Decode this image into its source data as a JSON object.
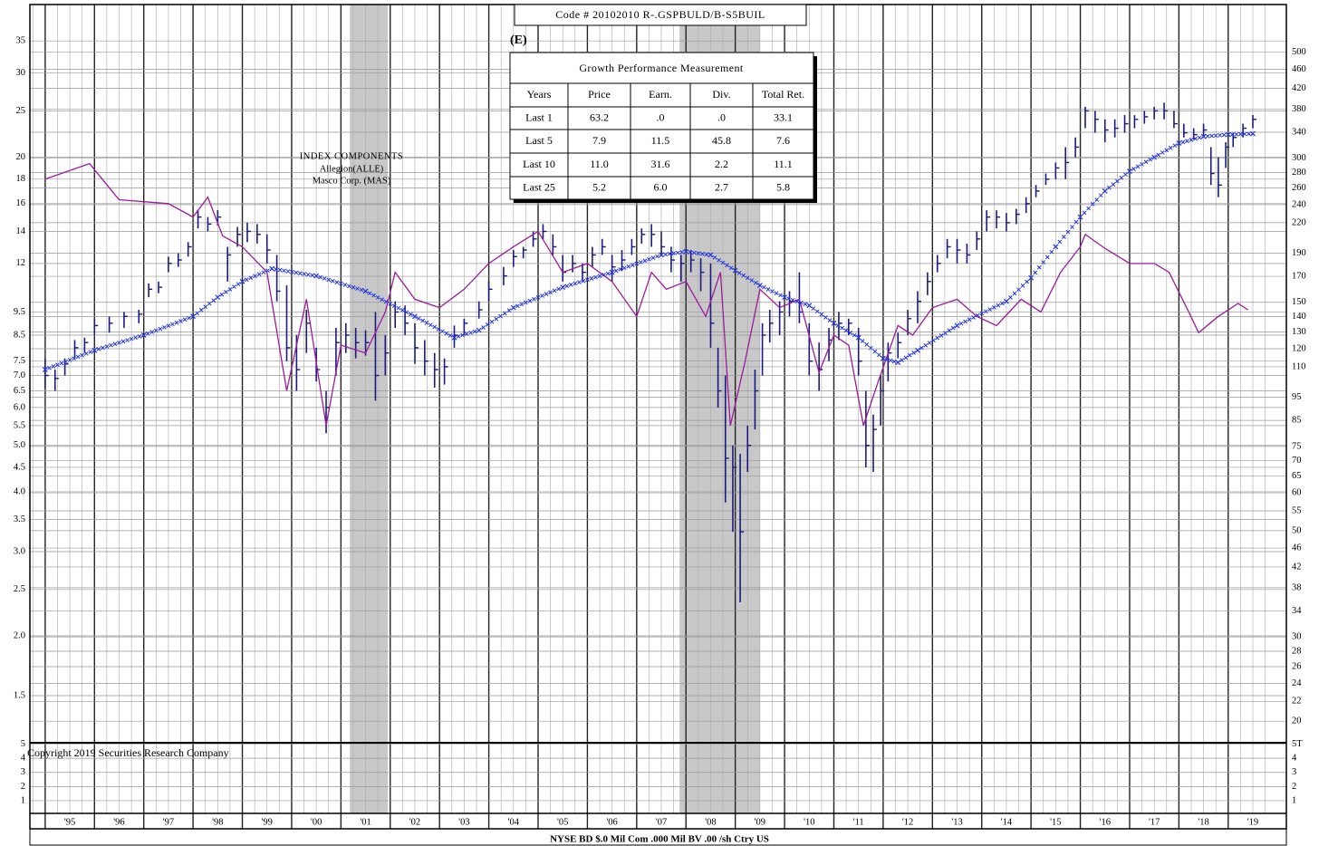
{
  "chart_data": {
    "type": "ohlc",
    "log_scale": true,
    "grid": true,
    "code_label": "Code # 20102010   R-.GSPBULD/B-S5BUIL",
    "estimate_flag": "(E)",
    "annotation": [
      "INDEX COMPONENTS",
      "Allegion(ALLE)",
      "Masco Corp. (MAS)"
    ],
    "copyright": "Copyright 2019 Securities Research Company",
    "footer": "NYSE BD  $.0 Mil Com .000 Mil BV .00 /sh  Ctry US",
    "xlim": [
      1994.69,
      2020.18
    ],
    "xticks": [
      {
        "value": 1995,
        "label": "'95"
      },
      {
        "value": 1996,
        "label": "'96"
      },
      {
        "value": 1997,
        "label": "'97"
      },
      {
        "value": 1998,
        "label": "'98"
      },
      {
        "value": 1999,
        "label": "'99"
      },
      {
        "value": 2000,
        "label": "'00"
      },
      {
        "value": 2001,
        "label": "'01"
      },
      {
        "value": 2002,
        "label": "'02"
      },
      {
        "value": 2003,
        "label": "'03"
      },
      {
        "value": 2004,
        "label": "'04"
      },
      {
        "value": 2005,
        "label": "'05"
      },
      {
        "value": 2006,
        "label": "'06"
      },
      {
        "value": 2007,
        "label": "'07"
      },
      {
        "value": 2008,
        "label": "'08"
      },
      {
        "value": 2009,
        "label": "'09"
      },
      {
        "value": 2010,
        "label": "'10"
      },
      {
        "value": 2011,
        "label": "'11"
      },
      {
        "value": 2012,
        "label": "'12"
      },
      {
        "value": 2013,
        "label": "'13"
      },
      {
        "value": 2014,
        "label": "'14"
      },
      {
        "value": 2015,
        "label": "'15"
      },
      {
        "value": 2016,
        "label": "'16"
      },
      {
        "value": 2017,
        "label": "'17"
      },
      {
        "value": 2018,
        "label": "'18"
      },
      {
        "value": 2019,
        "label": "'19"
      }
    ],
    "ylim": [
      1.196,
      41.7
    ],
    "yticks": [
      1.5,
      {
        "value": 2,
        "label": "2.0"
      },
      2.5,
      {
        "value": 3,
        "label": "3.0"
      },
      3.5,
      {
        "value": 4,
        "label": "4.0"
      },
      4.5,
      {
        "value": 5,
        "label": "5.0"
      },
      5.5,
      {
        "value": 6,
        "label": "6.0"
      },
      6.5,
      {
        "value": 7,
        "label": "7.0"
      },
      7.5,
      8.5,
      9.5,
      12,
      14,
      16,
      18,
      20,
      25,
      30,
      35
    ],
    "y2lim": [
      18.03,
      628.4
    ],
    "y2ticks": [
      20,
      22,
      24,
      26,
      28,
      30,
      34,
      38,
      42,
      46,
      50,
      55,
      60,
      65,
      70,
      75,
      85,
      95,
      110,
      120,
      130,
      140,
      150,
      170,
      190,
      220,
      240,
      260,
      280,
      300,
      340,
      380,
      420,
      460,
      500
    ],
    "shaded_periods": [
      [
        2001.18,
        2001.95
      ],
      [
        2007.87,
        2009.5
      ]
    ],
    "lower_panel": {
      "ylim": [
        0.1,
        5.1
      ],
      "yticks": [
        1,
        2,
        3,
        4,
        5
      ],
      "y2ticks": [
        1,
        2,
        3,
        4,
        {
          "value": 5,
          "label": "5T"
        }
      ]
    },
    "series": [
      {
        "kind": "bars",
        "color": "#1a1a80",
        "x": [
          1995.0,
          1995.2,
          1995.4,
          1995.6,
          1995.8,
          1996.0,
          1996.3,
          1996.6,
          1996.9,
          1997.1,
          1997.3,
          1997.5,
          1997.7,
          1997.9,
          1998.1,
          1998.3,
          1998.5,
          1998.7,
          1998.9,
          1999.1,
          1999.3,
          1999.5,
          1999.7,
          1999.9,
          2000.1,
          2000.3,
          2000.5,
          2000.7,
          2000.9,
          2001.1,
          2001.3,
          2001.5,
          2001.7,
          2001.9,
          2002.1,
          2002.3,
          2002.5,
          2002.7,
          2002.9,
          2003.1,
          2003.3,
          2003.5,
          2003.8,
          2004.0,
          2004.3,
          2004.5,
          2004.7,
          2004.9,
          2005.1,
          2005.3,
          2005.5,
          2005.7,
          2005.9,
          2006.1,
          2006.3,
          2006.5,
          2006.7,
          2006.9,
          2007.1,
          2007.3,
          2007.5,
          2007.7,
          2007.9,
          2008.1,
          2008.3,
          2008.5,
          2008.65,
          2008.8,
          2008.95,
          2009.1,
          2009.25,
          2009.4,
          2009.55,
          2009.7,
          2009.9,
          2010.1,
          2010.3,
          2010.5,
          2010.7,
          2010.9,
          2011.1,
          2011.3,
          2011.5,
          2011.65,
          2011.8,
          2011.95,
          2012.1,
          2012.3,
          2012.5,
          2012.7,
          2012.9,
          2013.1,
          2013.3,
          2013.5,
          2013.7,
          2013.9,
          2014.1,
          2014.3,
          2014.5,
          2014.7,
          2014.9,
          2015.1,
          2015.3,
          2015.5,
          2015.7,
          2015.9,
          2016.1,
          2016.3,
          2016.5,
          2016.7,
          2016.9,
          2017.1,
          2017.3,
          2017.5,
          2017.7,
          2017.9,
          2018.1,
          2018.3,
          2018.5,
          2018.65,
          2018.8,
          2018.95,
          2019.1,
          2019.3,
          2019.5
        ],
        "high": [
          7.6,
          7.2,
          7.6,
          8.3,
          8.4,
          9.2,
          9.3,
          9.5,
          9.6,
          10.9,
          11.0,
          12.4,
          12.6,
          13.3,
          15.5,
          15.0,
          15.5,
          13.0,
          14.3,
          14.6,
          14.5,
          13.8,
          12.5,
          10.8,
          8.5,
          9.6,
          8.0,
          6.5,
          8.8,
          9.0,
          8.8,
          8.7,
          9.5,
          8.5,
          10.0,
          9.8,
          9.0,
          8.3,
          7.8,
          7.6,
          8.9,
          9.2,
          10.0,
          11.0,
          11.8,
          12.8,
          13.0,
          14.0,
          14.5,
          13.8,
          12.5,
          12.5,
          12.0,
          13.0,
          13.5,
          12.5,
          12.8,
          13.5,
          14.2,
          14.5,
          14.0,
          13.0,
          12.5,
          12.8,
          12.3,
          12.0,
          8.0,
          7.0,
          5.0,
          4.8,
          5.5,
          7.2,
          9.0,
          9.6,
          10.0,
          10.5,
          11.5,
          9.0,
          8.2,
          8.8,
          9.5,
          9.2,
          8.8,
          6.5,
          5.8,
          7.0,
          8.2,
          8.6,
          9.6,
          10.5,
          11.5,
          12.5,
          13.5,
          13.5,
          13.2,
          14.0,
          15.5,
          15.5,
          15.3,
          15.6,
          16.5,
          17.5,
          18.5,
          19.5,
          21.0,
          22.0,
          25.5,
          25.0,
          24.0,
          24.0,
          24.5,
          24.5,
          25.0,
          25.5,
          26.0,
          25.0,
          23.5,
          23.0,
          23.5,
          21.0,
          20.0,
          21.5,
          22.5,
          23.5,
          24.5
        ],
        "low": [
          6.6,
          6.5,
          7.0,
          7.6,
          7.8,
          8.5,
          8.6,
          8.8,
          9.0,
          10.2,
          10.4,
          11.5,
          11.8,
          12.4,
          14.2,
          14.0,
          14.4,
          11.0,
          13.0,
          13.3,
          13.2,
          12.0,
          10.0,
          7.5,
          6.5,
          7.8,
          6.8,
          5.3,
          7.0,
          7.8,
          7.6,
          7.7,
          6.2,
          7.0,
          8.8,
          8.5,
          7.4,
          7.0,
          6.6,
          6.7,
          8.0,
          8.5,
          9.2,
          10.0,
          10.8,
          11.8,
          12.3,
          13.0,
          13.5,
          12.5,
          11.0,
          11.5,
          11.0,
          11.8,
          12.5,
          11.0,
          11.6,
          12.5,
          13.2,
          13.0,
          12.5,
          11.5,
          11.0,
          11.5,
          10.5,
          8.0,
          6.0,
          3.8,
          3.3,
          2.35,
          4.4,
          5.4,
          7.0,
          8.2,
          8.5,
          9.3,
          9.0,
          7.0,
          6.5,
          7.5,
          8.3,
          8.5,
          7.0,
          4.5,
          4.4,
          5.5,
          6.8,
          7.6,
          8.5,
          9.0,
          10.3,
          11.5,
          12.3,
          12.0,
          12.0,
          12.8,
          14.0,
          14.2,
          14.0,
          14.5,
          15.3,
          16.5,
          17.5,
          18.0,
          18.0,
          20.0,
          23.0,
          22.5,
          21.5,
          22.0,
          22.5,
          23.0,
          23.5,
          24.0,
          24.0,
          23.0,
          22.0,
          21.8,
          22.0,
          17.5,
          16.5,
          19.0,
          21.0,
          22.0,
          23.0
        ],
        "close": [
          7.0,
          6.9,
          7.4,
          8.0,
          8.2,
          8.9,
          9.0,
          9.3,
          9.4,
          10.6,
          10.7,
          12.0,
          12.2,
          13.0,
          15.0,
          14.5,
          15.0,
          12.5,
          13.8,
          14.0,
          13.8,
          12.8,
          10.5,
          8.0,
          7.2,
          9.0,
          7.2,
          6.0,
          8.2,
          8.5,
          8.2,
          8.2,
          7.0,
          7.8,
          9.5,
          9.0,
          8.0,
          7.5,
          7.2,
          7.3,
          8.5,
          9.0,
          9.6,
          10.6,
          11.3,
          12.4,
          12.8,
          13.5,
          14.0,
          13.0,
          11.5,
          12.0,
          11.5,
          12.5,
          13.0,
          11.8,
          12.2,
          13.0,
          13.8,
          13.8,
          13.0,
          12.2,
          12.0,
          12.2,
          11.5,
          9.0,
          6.5,
          4.7,
          4.5,
          3.3,
          5.0,
          6.5,
          8.5,
          9.0,
          9.5,
          10.0,
          9.5,
          7.5,
          7.2,
          8.3,
          9.0,
          9.0,
          7.5,
          5.0,
          5.4,
          6.5,
          7.8,
          8.2,
          9.2,
          10.0,
          11.0,
          12.0,
          13.0,
          12.8,
          12.5,
          13.5,
          15.0,
          15.0,
          14.6,
          15.2,
          16.0,
          17.0,
          18.0,
          19.0,
          19.5,
          21.0,
          25.0,
          24.0,
          22.8,
          23.0,
          23.5,
          24.0,
          24.3,
          25.0,
          25.0,
          23.5,
          22.5,
          22.3,
          22.8,
          18.5,
          17.5,
          21.0,
          22.0,
          23.0,
          24.0
        ]
      },
      {
        "kind": "crosses",
        "color": "#2233dd",
        "x": [
          1995.0,
          1996.0,
          1997.0,
          1998.0,
          1998.5,
          1999.0,
          1999.6,
          2000.5,
          2001.5,
          2002.5,
          2003.3,
          2003.8,
          2004.5,
          2005.5,
          2006.5,
          2007.5,
          2008.0,
          2008.5,
          2009.0,
          2009.5,
          2010.0,
          2010.5,
          2011.0,
          2011.5,
          2012.0,
          2012.3,
          2012.7,
          2013.5,
          2014.5,
          2015.0,
          2015.5,
          2016.0,
          2016.5,
          2017.0,
          2017.5,
          2018.0,
          2018.5,
          2019.0,
          2019.5
        ],
        "values": [
          7.2,
          7.9,
          8.5,
          9.3,
          10.2,
          11.0,
          11.7,
          11.3,
          10.5,
          9.3,
          8.4,
          8.7,
          9.7,
          10.7,
          11.5,
          12.5,
          12.7,
          12.5,
          11.6,
          10.8,
          10.2,
          9.8,
          9.0,
          8.4,
          7.6,
          7.45,
          7.9,
          8.9,
          10.0,
          11.2,
          13.0,
          15.0,
          17.0,
          18.7,
          20.0,
          21.4,
          22.1,
          22.3,
          22.4
        ]
      },
      {
        "kind": "line",
        "color": "#9b1c9b",
        "x": [
          1995.0,
          1995.9,
          1996.5,
          1997.5,
          1998.0,
          1998.3,
          1998.6,
          1999.0,
          1999.5,
          1999.9,
          2000.3,
          2000.7,
          2001.0,
          2001.5,
          2001.9,
          2002.1,
          2002.5,
          2003.0,
          2003.5,
          2004.0,
          2004.5,
          2005.0,
          2005.5,
          2006.0,
          2006.5,
          2007.0,
          2007.3,
          2007.6,
          2008.0,
          2008.4,
          2008.7,
          2008.9,
          2009.2,
          2009.5,
          2009.9,
          2010.3,
          2010.7,
          2011.0,
          2011.3,
          2011.6,
          2011.9,
          2012.3,
          2012.6,
          2013.0,
          2013.5,
          2013.9,
          2014.3,
          2014.8,
          2015.2,
          2015.6,
          2016.0,
          2016.1,
          2016.5,
          2017.0,
          2017.5,
          2017.8,
          2018.2,
          2018.4,
          2018.8,
          2019.2,
          2019.4
        ],
        "values": [
          18.0,
          19.4,
          16.3,
          16.0,
          15.0,
          16.5,
          13.7,
          13.0,
          11.5,
          6.5,
          10.1,
          5.5,
          8.1,
          7.8,
          9.5,
          11.5,
          10.1,
          9.7,
          10.6,
          12.0,
          13.0,
          14.0,
          11.5,
          12.0,
          11.0,
          9.3,
          11.5,
          10.6,
          11.0,
          9.3,
          11.5,
          5.5,
          7.5,
          10.6,
          9.7,
          10.1,
          7.1,
          8.5,
          8.1,
          5.5,
          6.8,
          8.9,
          8.5,
          9.7,
          10.1,
          9.3,
          8.9,
          10.1,
          9.5,
          11.5,
          13.0,
          13.8,
          12.9,
          12.0,
          12.0,
          11.5,
          9.5,
          8.6,
          9.3,
          9.9,
          9.6
        ]
      }
    ]
  },
  "table": {
    "title": "Growth Performance Measurement",
    "header": [
      "Years",
      "Price",
      "Earn.",
      "Div.",
      "Total Ret."
    ],
    "rows": [
      [
        "Last 1",
        "63.2",
        ".0",
        ".0",
        "33.1"
      ],
      [
        "Last 5",
        "7.9",
        "11.5",
        "45.8",
        "7.6"
      ],
      [
        "Last 10",
        "11.0",
        "31.6",
        "2.2",
        "11.1"
      ],
      [
        "Last 25",
        "5.2",
        "6.0",
        "2.7",
        "5.8"
      ]
    ]
  }
}
